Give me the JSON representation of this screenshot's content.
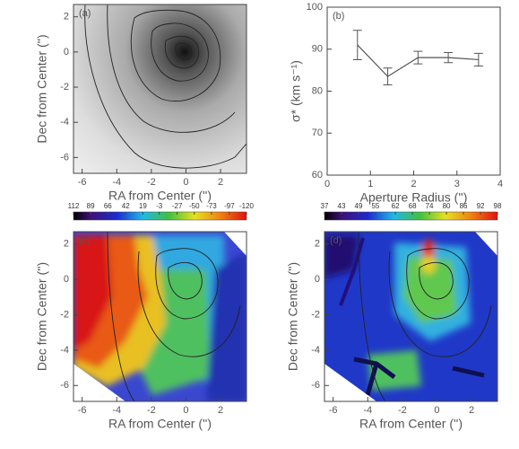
{
  "chart_data": [
    {
      "type": "image",
      "label": "(a)",
      "colormap": "gray",
      "x_label": "RA from Center ('')",
      "y_label": "Dec from Center ('')",
      "xlim": [
        -6.5,
        3.5
      ],
      "ylim": [
        -6.9,
        2.7
      ],
      "xticks": [
        -6,
        -4,
        -2,
        0,
        2
      ],
      "yticks": [
        2,
        0,
        -2,
        -4,
        -6
      ]
    },
    {
      "type": "line",
      "label": "(b)",
      "x_label": "Aperture Radius ('')",
      "y_label": "σ* (km s⁻¹)",
      "xlim": [
        0,
        4
      ],
      "ylim": [
        60,
        100
      ],
      "xticks": [
        0,
        1,
        2,
        3,
        4
      ],
      "yticks": [
        60,
        70,
        80,
        90,
        100
      ],
      "series": [
        {
          "color": "#555555",
          "x": [
            0.7,
            1.4,
            2.1,
            2.8,
            3.5
          ],
          "values": [
            91,
            83.5,
            88,
            88,
            87.5
          ],
          "errors": [
            3.5,
            2,
            1.5,
            1.2,
            1.5
          ]
        }
      ]
    },
    {
      "type": "image",
      "label": "(c)",
      "colormap": "rainbow",
      "x_label": "RA from Center ('')",
      "y_label": "Dec from Center ('')",
      "xlim": [
        -6.5,
        3.5
      ],
      "ylim": [
        -6.9,
        2.7
      ],
      "xticks": [
        -6,
        -4,
        -2,
        0,
        2
      ],
      "yticks": [
        2,
        0,
        -2,
        -4,
        -6
      ],
      "clim": [
        112,
        -120
      ],
      "cticks": [
        112,
        89,
        66,
        42,
        19,
        -3,
        -27,
        -50,
        -73,
        -97,
        -120
      ]
    },
    {
      "type": "image",
      "label": "(d)",
      "colormap": "rainbow",
      "x_label": "RA from Center ('')",
      "y_label": "Dec from Center ('')",
      "xlim": [
        -6.5,
        3.5
      ],
      "ylim": [
        -6.9,
        2.7
      ],
      "xticks": [
        -6,
        -4,
        -2,
        0,
        2
      ],
      "yticks": [
        2,
        0,
        -2,
        -4,
        -6
      ],
      "clim": [
        37,
        98
      ],
      "cticks": [
        37,
        43,
        49,
        55,
        62,
        68,
        74,
        80,
        86,
        92,
        98
      ]
    }
  ]
}
